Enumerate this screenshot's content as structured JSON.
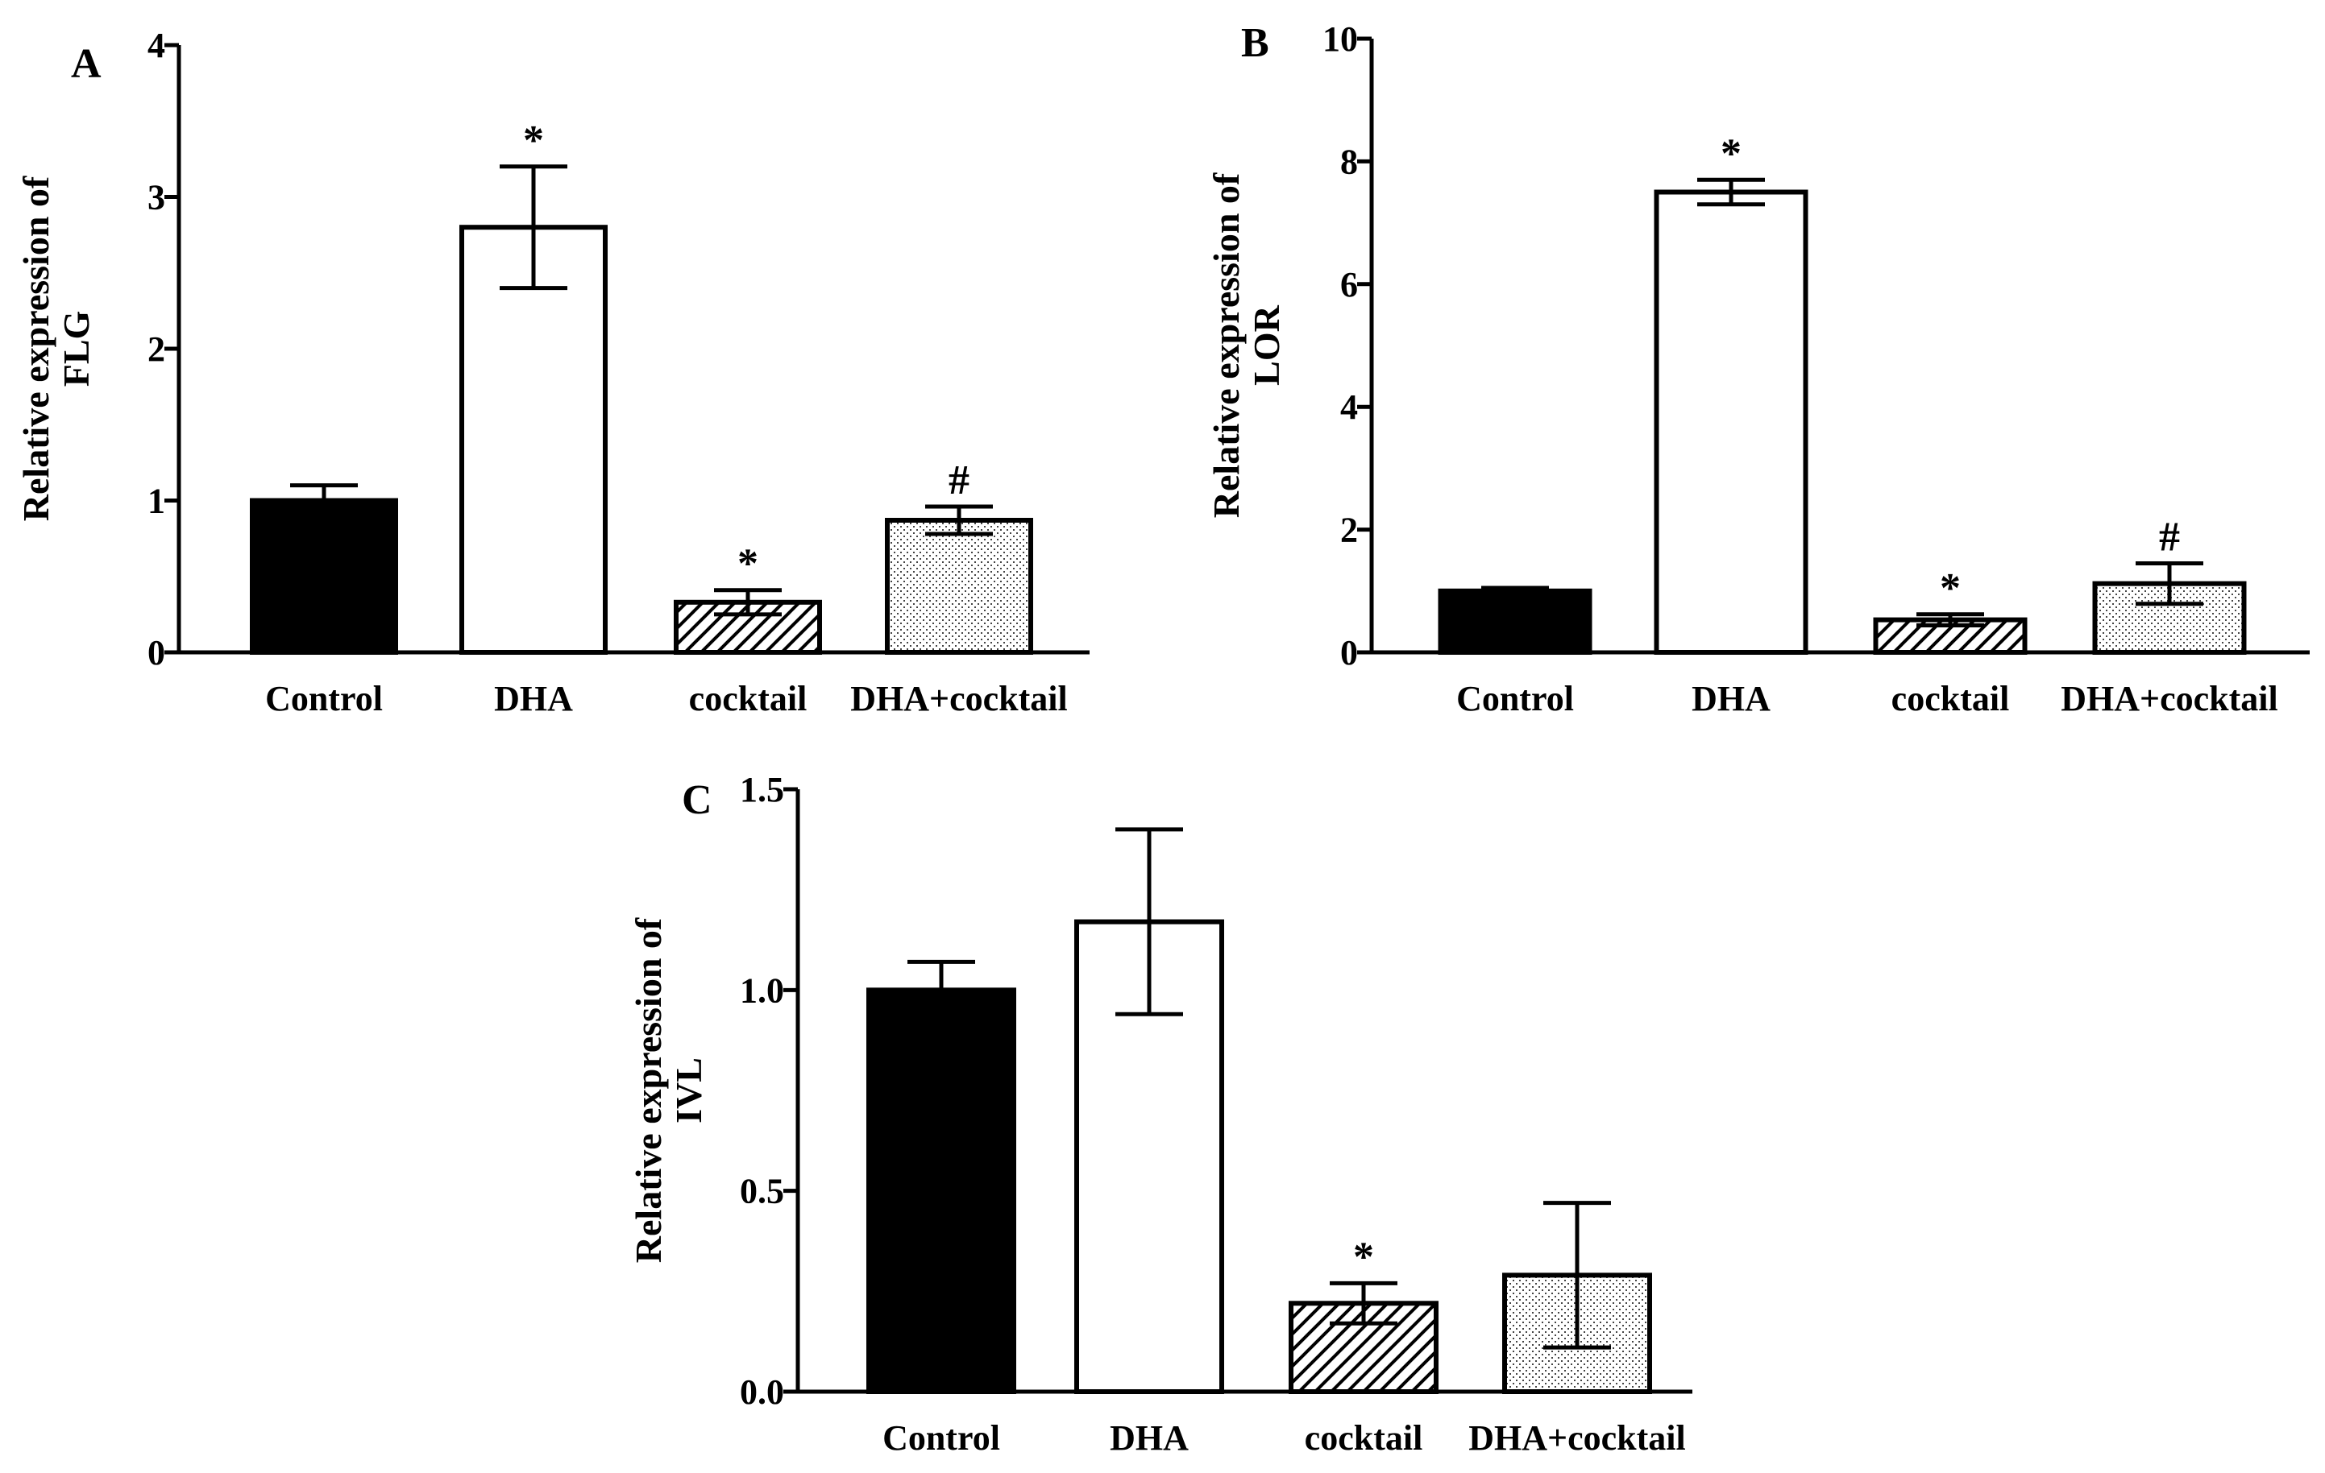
{
  "chart_data": [
    {
      "panel": "A",
      "type": "bar",
      "ylabel_line1": "Relative expression of",
      "ylabel_line2": "FLG",
      "categories": [
        "Control",
        "DHA",
        "cocktail",
        "DHA+cocktail"
      ],
      "values": [
        1.0,
        2.8,
        0.33,
        0.87
      ],
      "errors": [
        0.1,
        0.4,
        0.08,
        0.09
      ],
      "significance": [
        "",
        "*",
        "*",
        "#"
      ],
      "ylim": [
        0,
        4
      ],
      "yticks": [
        0,
        1,
        2,
        3,
        4
      ],
      "ytick_labels": [
        "0",
        "1",
        "2",
        "3",
        "4"
      ],
      "fills": [
        "solid",
        "white",
        "hatch",
        "dots"
      ]
    },
    {
      "panel": "B",
      "type": "bar",
      "ylabel_line1": "Relative expression of",
      "ylabel_line2": "LOR",
      "categories": [
        "Control",
        "DHA",
        "cocktail",
        "DHA+cocktail"
      ],
      "values": [
        1.0,
        7.5,
        0.53,
        1.12
      ],
      "errors": [
        0.05,
        0.2,
        0.09,
        0.33
      ],
      "significance": [
        "",
        "*",
        "*",
        "#"
      ],
      "ylim": [
        0,
        10
      ],
      "yticks": [
        0,
        2,
        4,
        6,
        8,
        10
      ],
      "ytick_labels": [
        "0",
        "2",
        "4",
        "6",
        "8",
        "10"
      ],
      "fills": [
        "solid",
        "white",
        "hatch",
        "dots"
      ]
    },
    {
      "panel": "C",
      "type": "bar",
      "ylabel_line1": "Relative expression of",
      "ylabel_line2": "IVL",
      "categories": [
        "Control",
        "DHA",
        "cocktail",
        "DHA+cocktail"
      ],
      "values": [
        1.0,
        1.17,
        0.22,
        0.29
      ],
      "errors": [
        0.07,
        0.23,
        0.05,
        0.18
      ],
      "significance": [
        "",
        "",
        "*",
        ""
      ],
      "ylim": [
        0,
        1.5
      ],
      "yticks": [
        0,
        0.5,
        1.0,
        1.5
      ],
      "ytick_labels": [
        "0.0",
        "0.5",
        "1.0",
        "1.5"
      ],
      "fills": [
        "solid",
        "white",
        "hatch",
        "dots"
      ]
    }
  ]
}
